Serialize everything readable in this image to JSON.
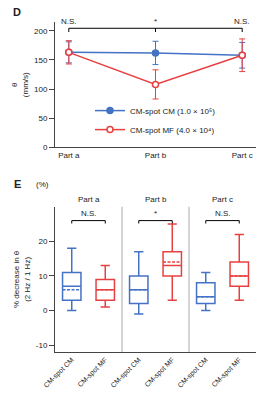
{
  "chart_data": [
    {
      "type": "line",
      "title": "D",
      "categories": [
        "Part a",
        "Part b",
        "Part c"
      ],
      "ylabel": "θ\n(mm/s)",
      "series": [
        {
          "name": "CM-spot CM (1.0 × 10⁵)",
          "color": "#4472c4",
          "marker": "filled",
          "values": [
            163,
            162,
            158
          ],
          "errors": [
            18,
            20,
            22
          ]
        },
        {
          "name": "CM-spot MF (4.0 × 10⁴)",
          "color": "#e84040",
          "marker": "open",
          "values": [
            163,
            108,
            158
          ],
          "errors": [
            20,
            25,
            28
          ]
        }
      ],
      "ylim": [
        0,
        215
      ],
      "yticks": [
        0,
        50,
        100,
        150,
        200
      ],
      "grid": false,
      "legend": "bottom",
      "annotations": [
        {
          "text": "N.S.",
          "x": 0
        },
        {
          "text": "*",
          "x": 1
        },
        {
          "text": "N.S.",
          "x": 2
        }
      ]
    },
    {
      "type": "box",
      "title": "E",
      "subtitle": "(%)",
      "categories": [
        "CM-spot CM",
        "CM-spot MF",
        "CM-spot CM",
        "CM-spot MF",
        "CM-spot CM",
        "CM-spot MF"
      ],
      "category_groups": [
        "Part a",
        "Part a",
        "Part b",
        "Part b",
        "Part c",
        "Part c"
      ],
      "ylabel": "% decrease in θ\n(2 Hz / 1 Hz)",
      "boxes": [
        {
          "color": "#4472c4",
          "median": 7,
          "q1": 3,
          "q3": 11,
          "whislo": 0,
          "whishi": 18,
          "mean": 6
        },
        {
          "color": "#e84040",
          "median": 6,
          "q1": 3,
          "q3": 9,
          "whislo": 1,
          "whishi": 13,
          "mean": 6
        },
        {
          "color": "#4472c4",
          "median": 6,
          "q1": 2,
          "q3": 10,
          "whislo": -1,
          "whishi": 17,
          "mean": 6
        },
        {
          "color": "#e84040",
          "median": 13,
          "q1": 10,
          "q3": 17,
          "whislo": 3,
          "whishi": 25,
          "mean": 14
        },
        {
          "color": "#4472c4",
          "median": 4,
          "q1": 2,
          "q3": 8,
          "whislo": 0,
          "whishi": 11,
          "mean": 4
        },
        {
          "color": "#e84040",
          "median": 10,
          "q1": 7,
          "q3": 14,
          "whislo": 3,
          "whishi": 22,
          "mean": 10
        }
      ],
      "ylim": [
        -12,
        30
      ],
      "yticks": [
        -10,
        0,
        10,
        20
      ],
      "grid": false,
      "annotations": [
        {
          "text": "N.S.",
          "x": [
            0,
            1
          ]
        },
        {
          "text": "*",
          "x": [
            2,
            3
          ]
        },
        {
          "text": "N.S.",
          "x": [
            4,
            5
          ]
        }
      ]
    }
  ]
}
